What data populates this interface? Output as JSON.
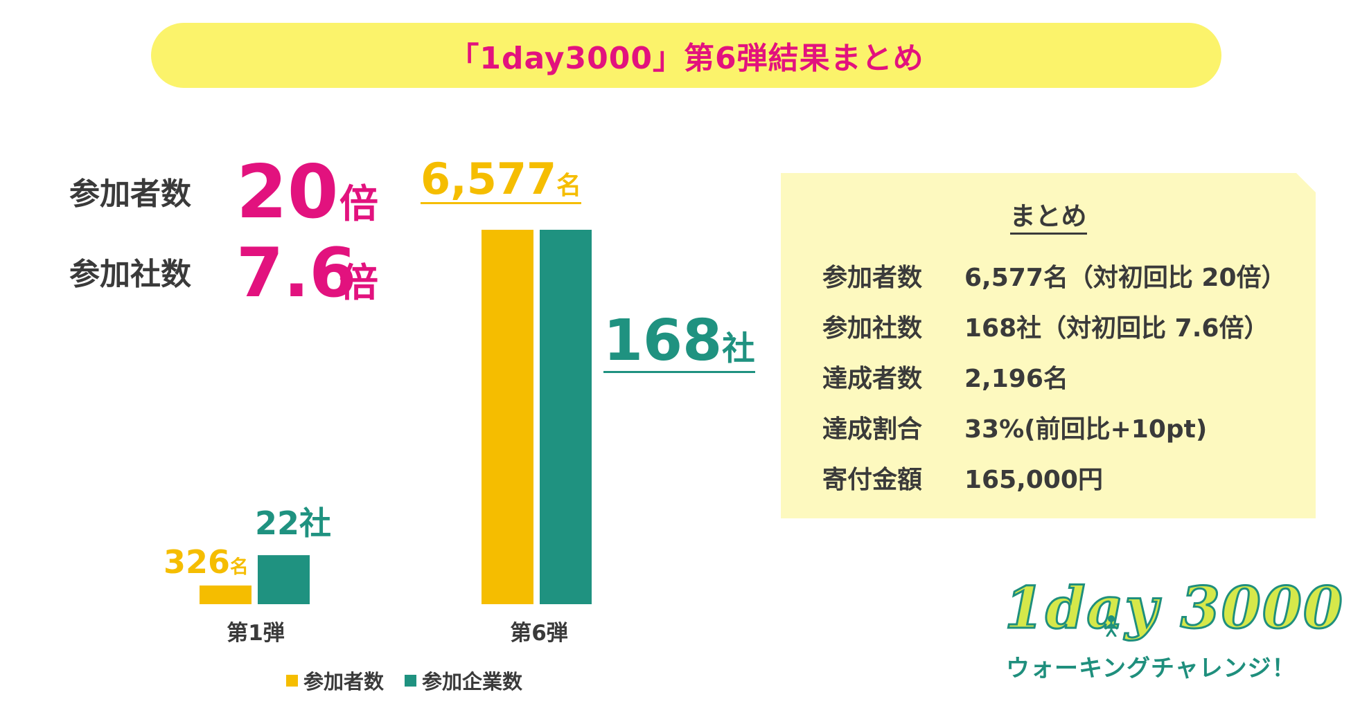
{
  "title": "「1day3000」第6弾結果まとめ",
  "stats": [
    {
      "label": "参加者数",
      "number": "20",
      "unit": "倍"
    },
    {
      "label": "参加社数",
      "number": "7.6",
      "unit": "倍"
    }
  ],
  "chart_data": {
    "type": "bar",
    "categories": [
      "第1弾",
      "第6弾"
    ],
    "series": [
      {
        "name": "参加者数",
        "values": [
          326,
          6577
        ],
        "color": "#f5bd00"
      },
      {
        "name": "参加企業数",
        "values": [
          22,
          168
        ],
        "color": "#1f9280"
      }
    ],
    "value_labels": {
      "participants": [
        {
          "num": "326",
          "unit": "名"
        },
        {
          "num": "6,577",
          "unit": "名"
        }
      ],
      "companies": [
        {
          "num": "22",
          "unit": "社"
        },
        {
          "num": "168",
          "unit": "社"
        }
      ]
    },
    "legend_position": "bottom"
  },
  "legend": [
    {
      "label": "参加者数",
      "color": "#f5bd00"
    },
    {
      "label": "参加企業数",
      "color": "#1f9280"
    }
  ],
  "summary": {
    "heading": "まとめ",
    "rows": [
      {
        "key": "参加者数",
        "value": "6,577名（対初回比 20倍）"
      },
      {
        "key": "参加社数",
        "value": "168社（対初回比 7.6倍）"
      },
      {
        "key": "達成者数",
        "value": "2,196名"
      },
      {
        "key": "達成割合",
        "value": "33%(前回比+10pt)"
      },
      {
        "key": "寄付金額",
        "value": "165,000円"
      }
    ]
  },
  "logo": {
    "main": "1day 3000",
    "sub": "ウォーキングチャレンジ！"
  },
  "colors": {
    "accent_pink": "#e2127e",
    "title_bg": "#fbf36b",
    "summary_bg": "#fdf9bf",
    "participants": "#f5bd00",
    "companies": "#1f9280"
  }
}
